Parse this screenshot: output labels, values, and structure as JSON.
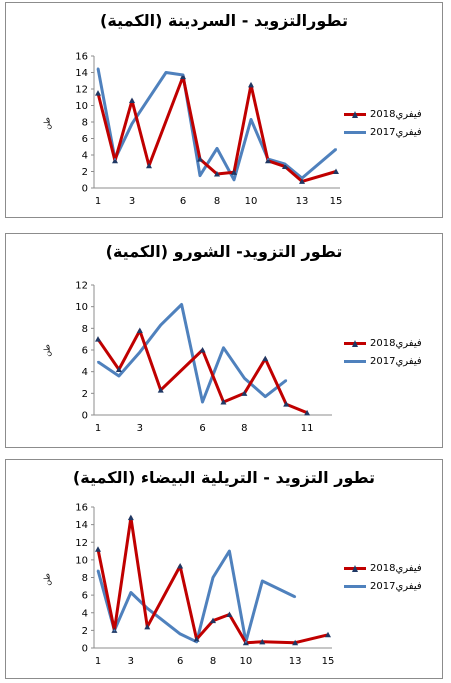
{
  "legend": {
    "series1": "فيفري2018",
    "series2": "فيفري2017"
  },
  "colors": {
    "series1": "#c00000",
    "series2": "#4f81bd",
    "marker": "#1f3864",
    "grid": "#8c8c8c"
  },
  "chart_data": [
    {
      "type": "line",
      "title": "تطورالتزويد - السردينة (الكمية)",
      "ylabel": "طن",
      "ylim": [
        0,
        16
      ],
      "yticks": [
        0,
        2,
        4,
        6,
        8,
        10,
        12,
        14,
        16
      ],
      "x": [
        1,
        2,
        3,
        4,
        5,
        6,
        7,
        8,
        9,
        10,
        11,
        12,
        13,
        14,
        15
      ],
      "xtick_labels": [
        "1",
        "3",
        "6",
        "8",
        "10",
        "13",
        "15"
      ],
      "xtick_positions": [
        1,
        3,
        6,
        8,
        10,
        13,
        15
      ],
      "series": [
        {
          "name": "فيفري2018",
          "values": [
            11.5,
            3.3,
            10.6,
            2.7,
            null,
            13.5,
            3.5,
            1.7,
            1.9,
            12.5,
            3.3,
            2.6,
            0.8,
            null,
            2
          ]
        },
        {
          "name": "فيفري2017",
          "values": [
            14.5,
            3.5,
            7.8,
            null,
            14,
            13.7,
            1.5,
            4.8,
            1.0,
            8.3,
            3.5,
            2.9,
            1.2,
            null,
            4.7
          ]
        }
      ]
    },
    {
      "type": "line",
      "title": "تطور التزويد- الشورو (الكمية)",
      "ylabel": "طن",
      "ylim": [
        0,
        12
      ],
      "yticks": [
        0,
        2,
        4,
        6,
        8,
        10,
        12
      ],
      "x": [
        1,
        2,
        3,
        4,
        5,
        6,
        7,
        8,
        9,
        10,
        11,
        12
      ],
      "xtick_labels": [
        "1",
        "3",
        "6",
        "8",
        "11"
      ],
      "xtick_positions": [
        1,
        3,
        6,
        8,
        11
      ],
      "series": [
        {
          "name": "فيفري2018",
          "values": [
            7.0,
            4.2,
            7.8,
            2.3,
            null,
            6.0,
            1.2,
            2.0,
            5.2,
            1.0,
            0.2,
            null
          ]
        },
        {
          "name": "فيفري2017",
          "values": [
            4.9,
            3.6,
            5.8,
            8.3,
            10.2,
            1.2,
            6.2,
            3.4,
            1.7,
            3.2,
            null,
            null
          ]
        }
      ]
    },
    {
      "type": "line",
      "title": "تطور التزويد - التريلية البيضاء (الكمية)",
      "ylabel": "طن",
      "ylim": [
        0,
        16
      ],
      "yticks": [
        0,
        2,
        4,
        6,
        8,
        10,
        12,
        14,
        16
      ],
      "x": [
        1,
        2,
        3,
        4,
        5,
        6,
        7,
        8,
        9,
        10,
        11,
        12,
        13,
        14,
        15
      ],
      "xtick_labels": [
        "1",
        "3",
        "6",
        "8",
        "10",
        "13",
        "15"
      ],
      "xtick_positions": [
        1,
        3,
        6,
        8,
        10,
        13,
        15
      ],
      "series": [
        {
          "name": "فيفري2018",
          "values": [
            11.2,
            2.0,
            14.8,
            2.4,
            null,
            9.3,
            1.0,
            3.1,
            3.8,
            0.6,
            0.7,
            null,
            0.6,
            null,
            1.5
          ]
        },
        {
          "name": "فيفري2017",
          "values": [
            8.8,
            2.0,
            6.3,
            4.5,
            null,
            1.6,
            0.7,
            8.0,
            11.0,
            0.7,
            7.6,
            null,
            5.8,
            null,
            null
          ]
        }
      ]
    }
  ]
}
